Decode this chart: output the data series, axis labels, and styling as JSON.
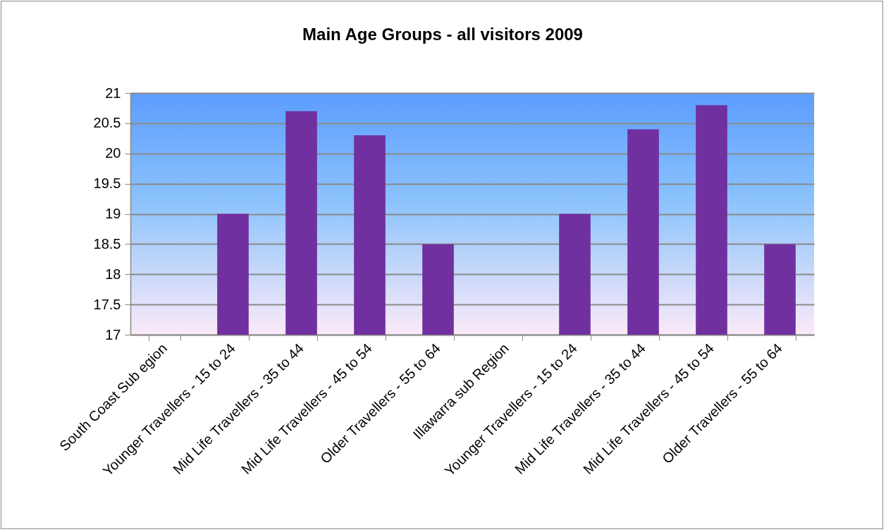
{
  "chart_data": {
    "type": "bar",
    "title": "Main Age Groups - all visitors 2009",
    "categories": [
      "South Coast Sub egion",
      "Younger Travellers - 15 to 24",
      "Mid Life Travellers - 35 to 44",
      "Mid Life Travellers - 45 to 54",
      "Older Travellers - 55 to 64",
      "Illawarra sub Region",
      "Younger Travellers - 15 to 24",
      "Mid Life Travellers - 35 to 44",
      "Mid Life Travellers - 45 to 54",
      "Older Travellers - 55 to 64"
    ],
    "values": [
      null,
      19,
      20.7,
      20.3,
      18.5,
      null,
      19,
      20.4,
      20.8,
      18.5
    ],
    "color": "#7030a0",
    "ylim": [
      17,
      21
    ],
    "yticks": [
      17,
      17.5,
      18,
      18.5,
      19,
      19.5,
      20,
      20.5,
      21
    ],
    "grid": "y"
  }
}
